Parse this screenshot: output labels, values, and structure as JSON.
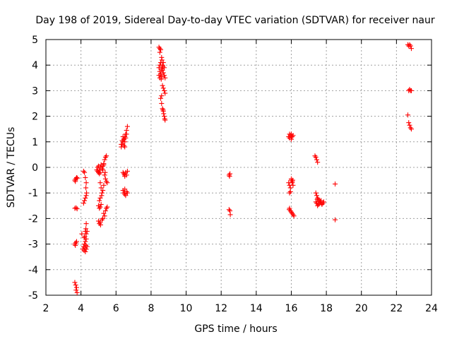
{
  "chart_data": {
    "type": "scatter",
    "title": "Day 198 of 2019, Sidereal Day-to-day VTEC variation (SDTVAR) for receiver naur",
    "xlabel": "GPS time / hours",
    "ylabel": "SDTVAR / TECUs",
    "xlim": [
      2,
      24
    ],
    "ylim": [
      -5,
      5
    ],
    "xticks": [
      2,
      4,
      6,
      8,
      10,
      12,
      14,
      16,
      18,
      20,
      22,
      24
    ],
    "yticks": [
      -5,
      -4,
      -3,
      -2,
      -1,
      0,
      1,
      2,
      3,
      4,
      5
    ],
    "grid": true,
    "marker": "+",
    "color": "#ff0000",
    "series": [
      {
        "name": "SDTVAR",
        "points": [
          [
            3.65,
            -0.5
          ],
          [
            3.7,
            -0.45
          ],
          [
            3.75,
            -0.4
          ],
          [
            3.8,
            -0.42
          ],
          [
            3.68,
            -0.55
          ],
          [
            3.65,
            -1.6
          ],
          [
            3.72,
            -1.58
          ],
          [
            3.78,
            -1.62
          ],
          [
            3.65,
            -3.0
          ],
          [
            3.7,
            -2.95
          ],
          [
            3.75,
            -2.9
          ],
          [
            3.68,
            -3.05
          ],
          [
            3.65,
            -4.5
          ],
          [
            3.7,
            -4.6
          ],
          [
            3.75,
            -4.7
          ],
          [
            3.72,
            -4.8
          ],
          [
            3.78,
            -4.9
          ],
          [
            4.15,
            -0.15
          ],
          [
            4.2,
            -0.2
          ],
          [
            4.25,
            -0.4
          ],
          [
            4.3,
            -0.6
          ],
          [
            4.28,
            -0.8
          ],
          [
            4.32,
            -1.0
          ],
          [
            4.3,
            -1.1
          ],
          [
            4.25,
            -1.2
          ],
          [
            4.2,
            -1.3
          ],
          [
            4.15,
            -1.4
          ],
          [
            4.3,
            -2.2
          ],
          [
            4.28,
            -2.4
          ],
          [
            4.25,
            -2.5
          ],
          [
            4.3,
            -2.6
          ],
          [
            4.22,
            -2.7
          ],
          [
            4.18,
            -2.75
          ],
          [
            4.3,
            -2.8
          ],
          [
            4.25,
            -2.9
          ],
          [
            4.2,
            -3.0
          ],
          [
            4.28,
            -3.05
          ],
          [
            4.15,
            -3.1
          ],
          [
            4.22,
            -3.15
          ],
          [
            4.3,
            -3.2
          ],
          [
            4.18,
            -3.25
          ],
          [
            4.25,
            -3.3
          ],
          [
            4.1,
            -3.2
          ],
          [
            4.35,
            -3.1
          ],
          [
            4.05,
            -2.6
          ],
          [
            4.35,
            -2.5
          ],
          [
            4.9,
            -0.1
          ],
          [
            4.95,
            -0.15
          ],
          [
            5.0,
            -0.2
          ],
          [
            5.05,
            -0.1
          ],
          [
            5.1,
            0.0
          ],
          [
            5.0,
            0.05
          ],
          [
            5.15,
            0.1
          ],
          [
            5.2,
            -0.05
          ],
          [
            5.1,
            -0.2
          ],
          [
            5.05,
            -0.25
          ],
          [
            4.95,
            0.0
          ],
          [
            5.25,
            0.05
          ],
          [
            5.3,
            0.15
          ],
          [
            5.35,
            0.3
          ],
          [
            5.4,
            0.4
          ],
          [
            5.45,
            0.45
          ],
          [
            5.3,
            0.1
          ],
          [
            5.25,
            -0.1
          ],
          [
            5.35,
            -0.3
          ],
          [
            5.4,
            -0.45
          ],
          [
            5.45,
            -0.55
          ],
          [
            5.5,
            -0.6
          ],
          [
            5.38,
            -0.2
          ],
          [
            5.1,
            -0.6
          ],
          [
            5.15,
            -0.8
          ],
          [
            5.2,
            -1.0
          ],
          [
            5.18,
            -1.1
          ],
          [
            5.1,
            -1.2
          ],
          [
            5.05,
            -1.3
          ],
          [
            5.25,
            -0.9
          ],
          [
            5.3,
            -0.7
          ],
          [
            5.0,
            -1.5
          ],
          [
            5.05,
            -1.6
          ],
          [
            5.1,
            -1.55
          ],
          [
            5.15,
            -1.45
          ],
          [
            5.3,
            -1.8
          ],
          [
            5.35,
            -1.9
          ],
          [
            5.4,
            -1.7
          ],
          [
            5.45,
            -1.6
          ],
          [
            5.5,
            -1.55
          ],
          [
            5.25,
            -2.0
          ],
          [
            5.2,
            -2.05
          ],
          [
            5.0,
            -2.1
          ],
          [
            5.05,
            -2.2
          ],
          [
            5.1,
            -2.15
          ],
          [
            5.12,
            -2.25
          ],
          [
            6.3,
            0.8
          ],
          [
            6.35,
            0.9
          ],
          [
            6.4,
            1.0
          ],
          [
            6.45,
            1.1
          ],
          [
            6.5,
            1.2
          ],
          [
            6.55,
            1.3
          ],
          [
            6.6,
            1.45
          ],
          [
            6.65,
            1.6
          ],
          [
            6.35,
            1.05
          ],
          [
            6.45,
            0.85
          ],
          [
            6.5,
            1.0
          ],
          [
            6.55,
            1.15
          ],
          [
            6.4,
            1.2
          ],
          [
            6.6,
            1.3
          ],
          [
            6.3,
            0.9
          ],
          [
            6.5,
            0.8
          ],
          [
            6.4,
            -0.2
          ],
          [
            6.45,
            -0.25
          ],
          [
            6.5,
            -0.3
          ],
          [
            6.55,
            -0.2
          ],
          [
            6.6,
            -0.3
          ],
          [
            6.65,
            -0.15
          ],
          [
            6.5,
            -0.35
          ],
          [
            6.4,
            -0.9
          ],
          [
            6.45,
            -1.0
          ],
          [
            6.5,
            -1.05
          ],
          [
            6.55,
            -1.1
          ],
          [
            6.6,
            -0.95
          ],
          [
            6.65,
            -1.0
          ],
          [
            6.5,
            -0.85
          ],
          [
            8.45,
            4.7
          ],
          [
            8.5,
            4.65
          ],
          [
            8.55,
            4.6
          ],
          [
            8.5,
            4.5
          ],
          [
            8.6,
            4.3
          ],
          [
            8.55,
            4.1
          ],
          [
            8.5,
            4.0
          ],
          [
            8.45,
            3.9
          ],
          [
            8.6,
            3.85
          ],
          [
            8.65,
            3.8
          ],
          [
            8.7,
            3.7
          ],
          [
            8.75,
            3.6
          ],
          [
            8.5,
            3.75
          ],
          [
            8.55,
            3.65
          ],
          [
            8.6,
            3.55
          ],
          [
            8.65,
            4.0
          ],
          [
            8.7,
            4.1
          ],
          [
            8.75,
            3.9
          ],
          [
            8.8,
            3.5
          ],
          [
            8.45,
            3.6
          ],
          [
            8.5,
            3.5
          ],
          [
            8.58,
            3.45
          ],
          [
            8.62,
            4.2
          ],
          [
            8.68,
            3.95
          ],
          [
            8.65,
            3.2
          ],
          [
            8.7,
            3.1
          ],
          [
            8.75,
            3.0
          ],
          [
            8.8,
            2.9
          ],
          [
            8.6,
            2.8
          ],
          [
            8.55,
            2.7
          ],
          [
            8.6,
            2.5
          ],
          [
            8.65,
            2.3
          ],
          [
            8.7,
            2.2
          ],
          [
            8.72,
            2.1
          ],
          [
            8.75,
            2.0
          ],
          [
            8.78,
            1.9
          ],
          [
            8.8,
            1.85
          ],
          [
            8.68,
            2.25
          ],
          [
            12.45,
            -0.3
          ],
          [
            12.5,
            -0.25
          ],
          [
            12.48,
            -0.35
          ],
          [
            12.45,
            -1.65
          ],
          [
            12.5,
            -1.7
          ],
          [
            12.52,
            -1.85
          ],
          [
            15.85,
            1.2
          ],
          [
            15.9,
            1.15
          ],
          [
            15.95,
            1.25
          ],
          [
            16.0,
            1.3
          ],
          [
            16.05,
            1.2
          ],
          [
            16.1,
            1.25
          ],
          [
            15.9,
            1.3
          ],
          [
            16.0,
            1.1
          ],
          [
            15.85,
            -0.6
          ],
          [
            15.9,
            -0.7
          ],
          [
            15.95,
            -0.8
          ],
          [
            16.0,
            -0.5
          ],
          [
            16.05,
            -0.6
          ],
          [
            16.1,
            -0.7
          ],
          [
            15.9,
            -1.0
          ],
          [
            15.95,
            -0.95
          ],
          [
            16.0,
            -0.45
          ],
          [
            16.05,
            -0.55
          ],
          [
            16.08,
            -0.5
          ],
          [
            15.9,
            -1.6
          ],
          [
            15.95,
            -1.7
          ],
          [
            16.0,
            -1.75
          ],
          [
            16.05,
            -1.8
          ],
          [
            16.1,
            -1.85
          ],
          [
            16.15,
            -1.9
          ],
          [
            15.88,
            -1.65
          ],
          [
            17.35,
            0.45
          ],
          [
            17.4,
            0.4
          ],
          [
            17.45,
            0.3
          ],
          [
            17.5,
            0.2
          ],
          [
            17.4,
            -1.0
          ],
          [
            17.45,
            -1.1
          ],
          [
            17.5,
            -1.2
          ],
          [
            17.55,
            -1.25
          ],
          [
            17.6,
            -1.3
          ],
          [
            17.65,
            -1.35
          ],
          [
            17.7,
            -1.4
          ],
          [
            17.75,
            -1.45
          ],
          [
            17.8,
            -1.4
          ],
          [
            17.85,
            -1.35
          ],
          [
            17.45,
            -1.4
          ],
          [
            17.5,
            -1.5
          ],
          [
            17.55,
            -1.45
          ],
          [
            17.6,
            -1.4
          ],
          [
            17.7,
            -1.3
          ],
          [
            17.4,
            -1.35
          ],
          [
            17.48,
            -1.25
          ],
          [
            18.5,
            -0.65
          ],
          [
            18.5,
            -2.05
          ],
          [
            22.65,
            4.8
          ],
          [
            22.7,
            4.75
          ],
          [
            22.75,
            4.8
          ],
          [
            22.8,
            4.75
          ],
          [
            22.85,
            4.65
          ],
          [
            22.7,
            3.0
          ],
          [
            22.75,
            3.05
          ],
          [
            22.8,
            3.0
          ],
          [
            22.85,
            3.0
          ],
          [
            22.65,
            2.05
          ],
          [
            22.7,
            1.75
          ],
          [
            22.75,
            1.65
          ],
          [
            22.8,
            1.55
          ],
          [
            22.85,
            1.5
          ]
        ]
      }
    ]
  }
}
